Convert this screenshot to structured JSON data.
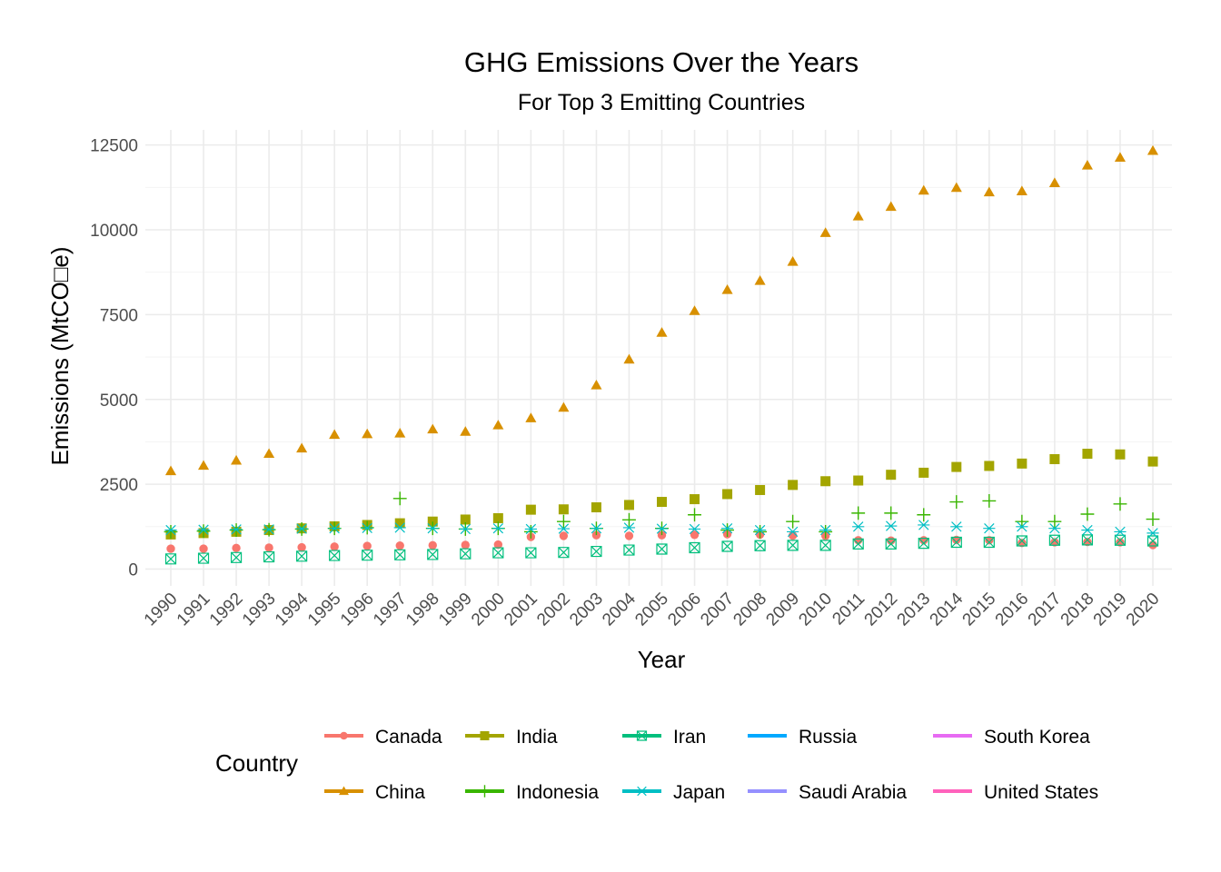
{
  "chart_data": {
    "type": "scatter",
    "title": "GHG Emissions Over the Years",
    "subtitle": "For Top 3 Emitting Countries",
    "xlabel": "Year",
    "ylabel": "Emissions (MtCO□e)",
    "legend_title": "Country",
    "legend_position": "bottom",
    "grid": true,
    "ylim": [
      -500,
      12900
    ],
    "yticks": [
      0,
      2500,
      5000,
      7500,
      10000,
      12500
    ],
    "x": [
      1990,
      1991,
      1992,
      1993,
      1994,
      1995,
      1996,
      1997,
      1998,
      1999,
      2000,
      2001,
      2002,
      2003,
      2004,
      2005,
      2006,
      2007,
      2008,
      2009,
      2010,
      2011,
      2012,
      2013,
      2014,
      2015,
      2016,
      2017,
      2018,
      2019,
      2020
    ],
    "series": [
      {
        "name": "Canada",
        "color": "#F8766D",
        "shape": "circle",
        "values": [
          600,
          600,
          620,
          630,
          640,
          660,
          680,
          690,
          700,
          710,
          720,
          950,
          980,
          1000,
          980,
          1000,
          1010,
          1030,
          1020,
          990,
          980,
          850,
          840,
          850,
          860,
          850,
          770,
          790,
          800,
          790,
          710
        ]
      },
      {
        "name": "China",
        "color": "#D89000",
        "shape": "triangle",
        "values": [
          2890,
          3050,
          3200,
          3400,
          3560,
          3960,
          3980,
          4000,
          4120,
          4050,
          4240,
          4450,
          4760,
          5420,
          6180,
          6970,
          7610,
          8230,
          8500,
          9060,
          9910,
          10400,
          10680,
          11160,
          11240,
          11110,
          11140,
          11380,
          11900,
          12130,
          12330
        ]
      },
      {
        "name": "India",
        "color": "#A3A500",
        "shape": "square",
        "values": [
          1020,
          1060,
          1100,
          1150,
          1200,
          1260,
          1300,
          1350,
          1400,
          1460,
          1500,
          1750,
          1760,
          1820,
          1890,
          1980,
          2060,
          2210,
          2330,
          2480,
          2590,
          2610,
          2780,
          2840,
          3010,
          3040,
          3110,
          3240,
          3400,
          3380,
          3170
        ]
      },
      {
        "name": "Indonesia",
        "color": "#39B600",
        "shape": "plus",
        "values": [
          1100,
          1120,
          1150,
          1160,
          1180,
          1200,
          1220,
          2080,
          1200,
          1180,
          1200,
          1100,
          1400,
          1200,
          1450,
          1200,
          1600,
          1150,
          1100,
          1400,
          1100,
          1650,
          1650,
          1600,
          1980,
          2010,
          1400,
          1400,
          1620,
          1920,
          1470
        ]
      },
      {
        "name": "Iran",
        "color": "#00BF7D",
        "shape": "square-cross",
        "values": [
          300,
          320,
          340,
          360,
          380,
          400,
          410,
          420,
          430,
          450,
          480,
          480,
          490,
          520,
          560,
          590,
          630,
          670,
          690,
          700,
          700,
          740,
          740,
          760,
          790,
          790,
          830,
          850,
          860,
          850,
          830
        ]
      },
      {
        "name": "Japan",
        "color": "#00BFC4",
        "shape": "asterisk",
        "values": [
          1150,
          1160,
          1170,
          1170,
          1190,
          1200,
          1210,
          1220,
          1200,
          1180,
          1200,
          1180,
          1190,
          1200,
          1220,
          1190,
          1180,
          1200,
          1150,
          1100,
          1150,
          1250,
          1270,
          1300,
          1250,
          1200,
          1250,
          1200,
          1150,
          1100,
          1060
        ]
      },
      {
        "name": "Russia",
        "color": "#00A9FF",
        "shape": "line",
        "values": []
      },
      {
        "name": "Saudi Arabia",
        "color": "#9590FF",
        "shape": "line",
        "values": []
      },
      {
        "name": "South Korea",
        "color": "#E76BF3",
        "shape": "line",
        "values": []
      },
      {
        "name": "United States",
        "color": "#FF62BC",
        "shape": "line",
        "values": []
      }
    ]
  }
}
